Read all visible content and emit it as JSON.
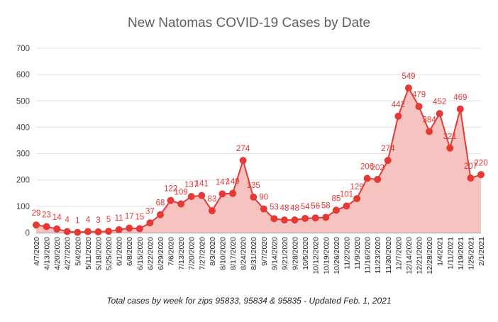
{
  "chart_data": {
    "type": "area",
    "title": "New Natomas COVID-19 Cases by Date",
    "caption": "Total cases by week for zips 95833, 95834 & 95835 - Updated Feb. 1, 2021",
    "xlabel": "",
    "ylabel": "",
    "ylim": [
      0,
      700
    ],
    "yticks": [
      "0",
      "100",
      "200",
      "300",
      "400",
      "500",
      "600",
      "700"
    ],
    "grid": true,
    "legend": "none",
    "colors": {
      "line": "#e53935",
      "fill": "#f6c3c0",
      "label": "#e53935",
      "grid": "#e0e0e0"
    },
    "categories": [
      "4/7/2020",
      "4/13/2020",
      "4/20/2020",
      "4/27/2020",
      "5/4/2020",
      "5/11/2020",
      "5/18/2020",
      "5/25/2020",
      "6/1/2020",
      "6/8/2020",
      "6/15/2020",
      "6/22/2020",
      "6/29/2020",
      "7/6/2020",
      "7/13/2020",
      "7/20/2020",
      "7/27/2020",
      "8/3/2020",
      "8/10/2020",
      "8/17/2020",
      "8/24/2020",
      "8/31/2020",
      "9/7/2020",
      "9/14/2020",
      "9/21/2020",
      "9/28/2020",
      "10/5/2020",
      "10/12/2020",
      "10/19/2020",
      "10/26/2020",
      "11/2/2020",
      "11/9/2020",
      "11/16/2020",
      "11/23/2020",
      "11/30/2020",
      "12/7/2020",
      "12/14/2020",
      "12/21/2020",
      "12/28/2020",
      "1/4/2021",
      "1/11/2021",
      "1/19/2021",
      "1/25/2021",
      "2/1/2021"
    ],
    "values": [
      29,
      23,
      14,
      4,
      1,
      4,
      3,
      5,
      11,
      17,
      15,
      37,
      68,
      122,
      109,
      137,
      141,
      83,
      147,
      149,
      274,
      135,
      90,
      53,
      48,
      48,
      54,
      56,
      58,
      85,
      101,
      129,
      206,
      202,
      274,
      442,
      549,
      479,
      384,
      452,
      321,
      469,
      207,
      220
    ],
    "data_labels": [
      "29",
      "23",
      "14",
      "4",
      "1",
      "4",
      "3",
      "5",
      "11",
      "17",
      "15",
      "37",
      "68",
      "122",
      "109",
      "137",
      "141",
      "83",
      "147",
      "149",
      "274",
      "135",
      "90",
      "53",
      "48",
      "48",
      "54",
      "56",
      "58",
      "85",
      "101",
      "129",
      "206",
      "202",
      "274",
      "442",
      "549",
      "479",
      "384",
      "452",
      "321",
      "469",
      "207",
      "220"
    ]
  }
}
